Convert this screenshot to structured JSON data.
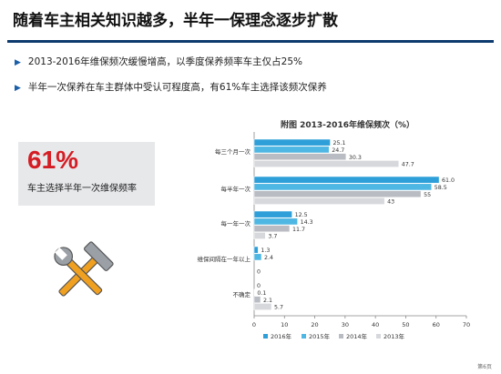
{
  "slide": {
    "title": "随着车主相关知识越多，半年一保理念逐步扩散",
    "bullets": [
      "2013-2016年维保频次缓慢增高，以季度保养频率车主仅占25%",
      "半年一次保养在车主群体中受认可程度高，有61%车主选择该频次保养"
    ],
    "callout": {
      "value": "61%",
      "label": "车主选择半年一次维保频率"
    },
    "page_number": "第6页"
  },
  "chart_data": {
    "type": "bar",
    "orientation": "horizontal",
    "title": "附图  2013-2016年维保频次（%）",
    "categories": [
      "每三个月一次",
      "每半年一次",
      "每一年一次",
      "维保间隔在一年以上",
      "不确定"
    ],
    "series": [
      {
        "name": "2016年",
        "color": "#2e9fd8",
        "values": [
          25.1,
          61.0,
          12.5,
          1.3,
          0
        ]
      },
      {
        "name": "2015年",
        "color": "#4fb7e3",
        "values": [
          24.7,
          58.5,
          14.3,
          2.4,
          0.1
        ]
      },
      {
        "name": "2014年",
        "color": "#b9bcc2",
        "values": [
          30.3,
          55,
          11.7,
          0,
          2.1
        ]
      },
      {
        "name": "2013年",
        "color": "#d6d8dc",
        "values": [
          47.7,
          43,
          3.7,
          0,
          5.7
        ]
      }
    ],
    "value_labels": [
      [
        "25.1",
        "61.0",
        "12.5",
        "1.3",
        "0"
      ],
      [
        "24.7",
        "58.5",
        "14.3",
        "2.4",
        "0.1"
      ],
      [
        "30.3",
        "55",
        "11.7",
        "",
        "2.1"
      ],
      [
        "47.7",
        "43",
        "3.7",
        "0",
        "5.7"
      ]
    ],
    "xlim": [
      0,
      70
    ],
    "xticks": [
      0,
      10,
      20,
      30,
      40,
      50,
      60,
      70
    ],
    "grid": false,
    "legend_position": "bottom"
  }
}
